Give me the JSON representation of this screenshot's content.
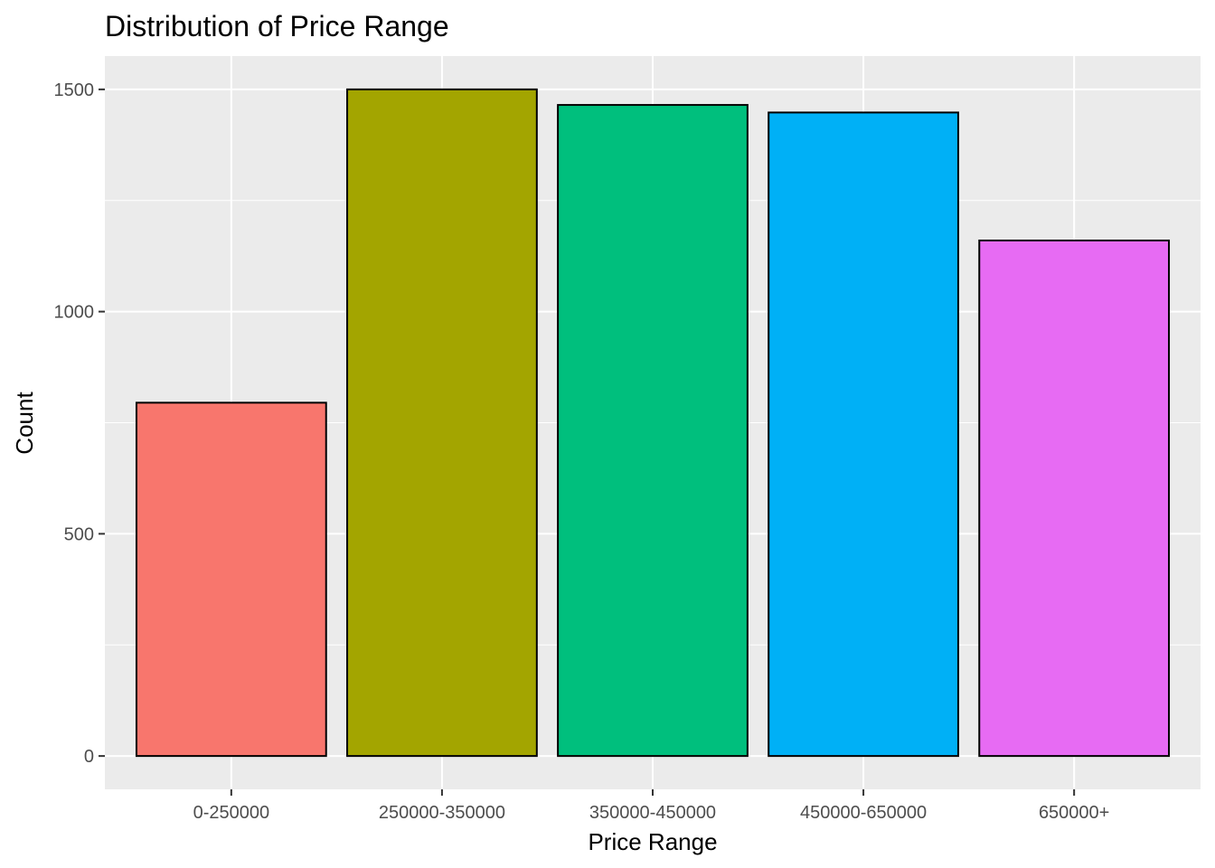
{
  "chart_data": {
    "type": "bar",
    "title": "Distribution of Price Range",
    "xlabel": "Price Range",
    "ylabel": "Count",
    "categories": [
      "0-250000",
      "250000-350000",
      "350000-450000",
      "450000-650000",
      "650000+"
    ],
    "values": [
      795,
      1500,
      1465,
      1448,
      1160
    ],
    "colors": [
      "#F8766D",
      "#A3A500",
      "#00BF7D",
      "#00B0F6",
      "#E76BF3"
    ],
    "ylim": [
      -75,
      1575
    ],
    "yticks": [
      0,
      500,
      1000,
      1500
    ],
    "ytick_labels": [
      "0",
      "500",
      "1000",
      "1500"
    ],
    "grid": true,
    "panel_background": "#EBEBEB",
    "grid_color": "#FFFFFF",
    "bar_outline": "#000000",
    "legend": "none"
  }
}
